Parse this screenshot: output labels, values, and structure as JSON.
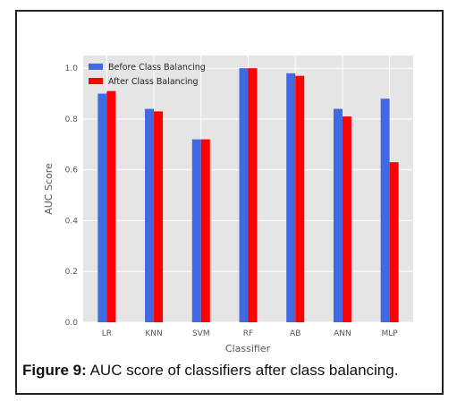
{
  "chart_data": {
    "type": "bar",
    "categories": [
      "LR",
      "KNN",
      "SVM",
      "RF",
      "AB",
      "ANN",
      "MLP"
    ],
    "series": [
      {
        "name": "Before Class Balancing",
        "color": "#4169e1",
        "values": [
          0.9,
          0.84,
          0.72,
          1.0,
          0.98,
          0.84,
          0.88
        ]
      },
      {
        "name": "After Class Balancing",
        "color": "#ff0000",
        "values": [
          0.91,
          0.83,
          0.72,
          1.0,
          0.97,
          0.81,
          0.63
        ]
      }
    ],
    "xlabel": "Classifier",
    "ylabel": "AUC Score",
    "ylim": [
      0,
      1.05
    ],
    "yticks": [
      "0.0",
      "0.2",
      "0.4",
      "0.6",
      "0.8",
      "1.0"
    ],
    "grid": true,
    "legend_position": "top-left",
    "background": "#e5e5e5"
  },
  "caption": {
    "label": "Figure 9:",
    "text": " AUC score of classifiers after class balancing."
  }
}
